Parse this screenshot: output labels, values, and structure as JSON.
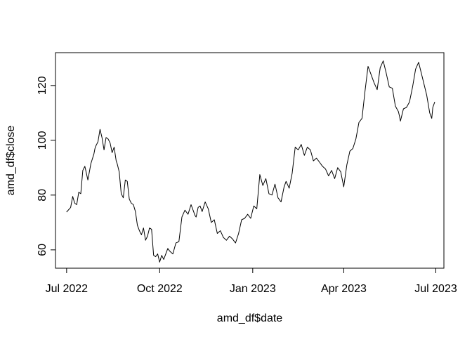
{
  "chart_data": {
    "type": "line",
    "xlabel": "amd_df$date",
    "ylabel": "amd_df$close",
    "xlim": [
      "2022-06-20",
      "2023-07-09"
    ],
    "ylim": [
      53.3,
      132
    ],
    "x_ticks": [
      {
        "date": "2022-07-01",
        "label": "Jul 2022"
      },
      {
        "date": "2022-10-01",
        "label": "Oct 2022"
      },
      {
        "date": "2023-01-01",
        "label": "Jan 2023"
      },
      {
        "date": "2023-04-01",
        "label": "Apr 2023"
      },
      {
        "date": "2023-07-01",
        "label": "Jul 2023"
      }
    ],
    "y_ticks": [
      {
        "value": 60,
        "label": "60"
      },
      {
        "value": 80,
        "label": "80"
      },
      {
        "value": 100,
        "label": "100"
      },
      {
        "value": 120,
        "label": "120"
      }
    ],
    "line_color": "#000000",
    "grid": false,
    "series": [
      {
        "x": [
          "2022-07-01",
          "2022-07-05",
          "2022-07-07",
          "2022-07-09",
          "2022-07-11",
          "2022-07-13",
          "2022-07-15",
          "2022-07-17",
          "2022-07-19",
          "2022-07-22",
          "2022-07-25",
          "2022-07-28",
          "2022-07-29",
          "2022-07-30",
          "2022-08-01",
          "2022-08-03",
          "2022-08-05",
          "2022-08-07",
          "2022-08-09",
          "2022-08-11",
          "2022-08-13",
          "2022-08-15",
          "2022-08-17",
          "2022-08-19",
          "2022-08-20",
          "2022-08-22",
          "2022-08-24",
          "2022-08-26",
          "2022-08-28",
          "2022-08-30",
          "2022-09-01",
          "2022-09-03",
          "2022-09-05",
          "2022-09-07",
          "2022-09-09",
          "2022-09-11",
          "2022-09-13",
          "2022-09-15",
          "2022-09-17",
          "2022-09-19",
          "2022-09-21",
          "2022-09-23",
          "2022-09-25",
          "2022-09-27",
          "2022-09-29",
          "2022-10-01",
          "2022-10-03",
          "2022-10-05",
          "2022-10-07",
          "2022-10-09",
          "2022-10-11",
          "2022-10-14",
          "2022-10-17",
          "2022-10-20",
          "2022-10-23",
          "2022-10-26",
          "2022-10-29",
          "2022-11-01",
          "2022-11-03",
          "2022-11-05",
          "2022-11-06",
          "2022-11-08",
          "2022-11-10",
          "2022-11-12",
          "2022-11-15",
          "2022-11-18",
          "2022-11-21",
          "2022-11-24",
          "2022-11-27",
          "2022-11-30",
          "2022-12-03",
          "2022-12-06",
          "2022-12-09",
          "2022-12-12",
          "2022-12-15",
          "2022-12-18",
          "2022-12-21",
          "2022-12-24",
          "2022-12-27",
          "2022-12-30",
          "2023-01-02",
          "2023-01-05",
          "2023-01-08",
          "2023-01-11",
          "2023-01-14",
          "2023-01-17",
          "2023-01-20",
          "2023-01-23",
          "2023-01-26",
          "2023-01-29",
          "2023-02-01",
          "2023-02-03",
          "2023-02-06",
          "2023-02-09",
          "2023-02-12",
          "2023-02-15",
          "2023-02-18",
          "2023-02-21",
          "2023-02-24",
          "2023-02-27",
          "2023-03-02",
          "2023-03-05",
          "2023-03-08",
          "2023-03-11",
          "2023-03-14",
          "2023-03-17",
          "2023-03-20",
          "2023-03-23",
          "2023-03-26",
          "2023-03-29",
          "2023-04-01",
          "2023-04-04",
          "2023-04-07",
          "2023-04-10",
          "2023-04-13",
          "2023-04-16",
          "2023-04-19",
          "2023-04-22",
          "2023-04-25",
          "2023-04-28",
          "2023-05-01",
          "2023-05-04",
          "2023-05-07",
          "2023-05-10",
          "2023-05-13",
          "2023-05-16",
          "2023-05-19",
          "2023-05-22",
          "2023-05-25",
          "2023-05-26",
          "2023-05-27",
          "2023-05-30",
          "2023-06-02",
          "2023-06-05",
          "2023-06-08",
          "2023-06-11",
          "2023-06-14",
          "2023-06-16",
          "2023-06-19",
          "2023-06-22",
          "2023-06-25",
          "2023-06-27",
          "2023-06-28",
          "2023-06-30"
        ],
        "y": [
          73.8,
          75.5,
          79.5,
          77.0,
          76.5,
          81.0,
          80.5,
          89.0,
          90.5,
          85.5,
          91.5,
          95.0,
          97.0,
          98.0,
          99.5,
          104.0,
          101.0,
          96.5,
          101.0,
          100.5,
          99.0,
          95.5,
          97.5,
          92.5,
          91.5,
          88.5,
          80.5,
          79.0,
          85.5,
          85.0,
          78.5,
          77.0,
          76.5,
          74.0,
          69.0,
          67.0,
          65.5,
          68.0,
          63.5,
          65.0,
          68.0,
          67.5,
          58.0,
          57.5,
          58.5,
          55.5,
          58.0,
          56.5,
          58.5,
          60.5,
          59.5,
          58.5,
          62.5,
          63.0,
          72.0,
          74.5,
          73.0,
          76.5,
          74.5,
          72.5,
          72.0,
          75.5,
          76.0,
          74.0,
          77.5,
          75.0,
          70.0,
          71.0,
          66.0,
          67.0,
          64.5,
          63.5,
          65.0,
          64.0,
          62.5,
          66.0,
          71.0,
          71.5,
          73.0,
          71.5,
          76.0,
          75.0,
          87.5,
          83.5,
          86.0,
          80.5,
          80.0,
          84.0,
          79.0,
          77.5,
          83.0,
          85.0,
          82.5,
          88.0,
          97.5,
          96.5,
          98.5,
          94.5,
          97.5,
          96.5,
          92.5,
          93.5,
          92.0,
          90.5,
          89.5,
          87.0,
          89.0,
          86.0,
          90.0,
          88.5,
          83.0,
          91.0,
          96.0,
          97.0,
          100.5,
          106.5,
          108.0,
          118.0,
          127.0,
          124.0,
          121.0,
          118.5,
          126.5,
          129.0,
          124.5,
          119.5,
          119.0,
          112.5,
          110.5,
          109.0,
          107.0,
          111.5,
          112.0,
          114.0,
          119.5,
          126.0,
          128.5,
          125.5,
          121.0,
          116.5,
          110.0,
          108.0,
          112.0,
          114.0
        ]
      }
    ]
  }
}
